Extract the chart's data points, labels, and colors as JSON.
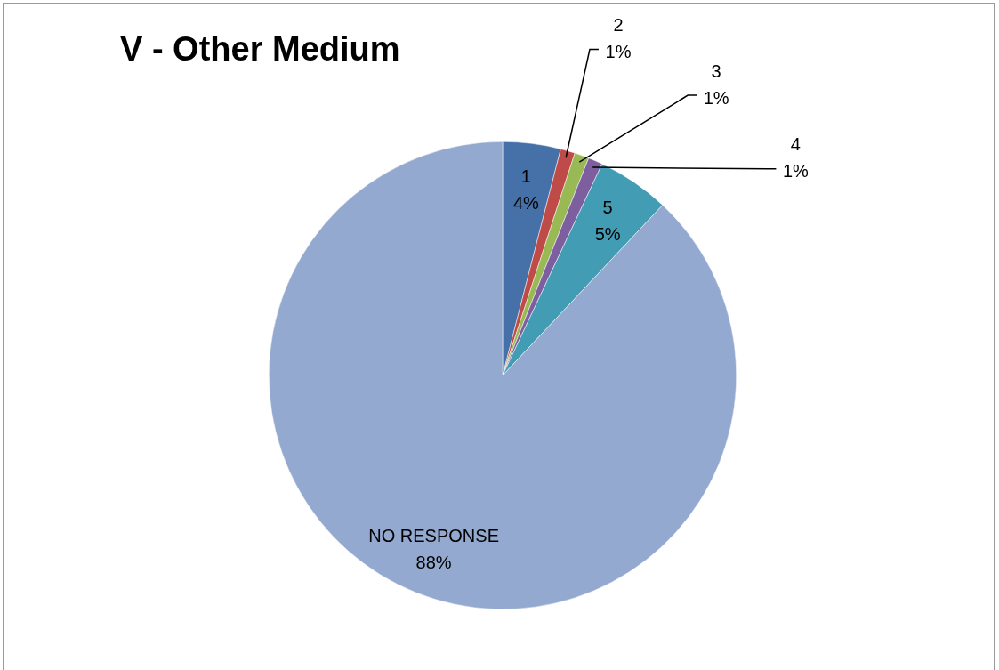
{
  "chart_data": {
    "type": "pie",
    "title": "V - Other Medium",
    "categories": [
      "1",
      "2",
      "3",
      "4",
      "5",
      "NO RESPONSE"
    ],
    "values": [
      4,
      1,
      1,
      1,
      5,
      88
    ],
    "value_labels": [
      "4%",
      "1%",
      "1%",
      "1%",
      "5%",
      "88%"
    ],
    "colors": [
      "#4571a8",
      "#be4b48",
      "#98b954",
      "#7d5fa0",
      "#429cb3",
      "#93a9cf"
    ],
    "legend": false
  }
}
